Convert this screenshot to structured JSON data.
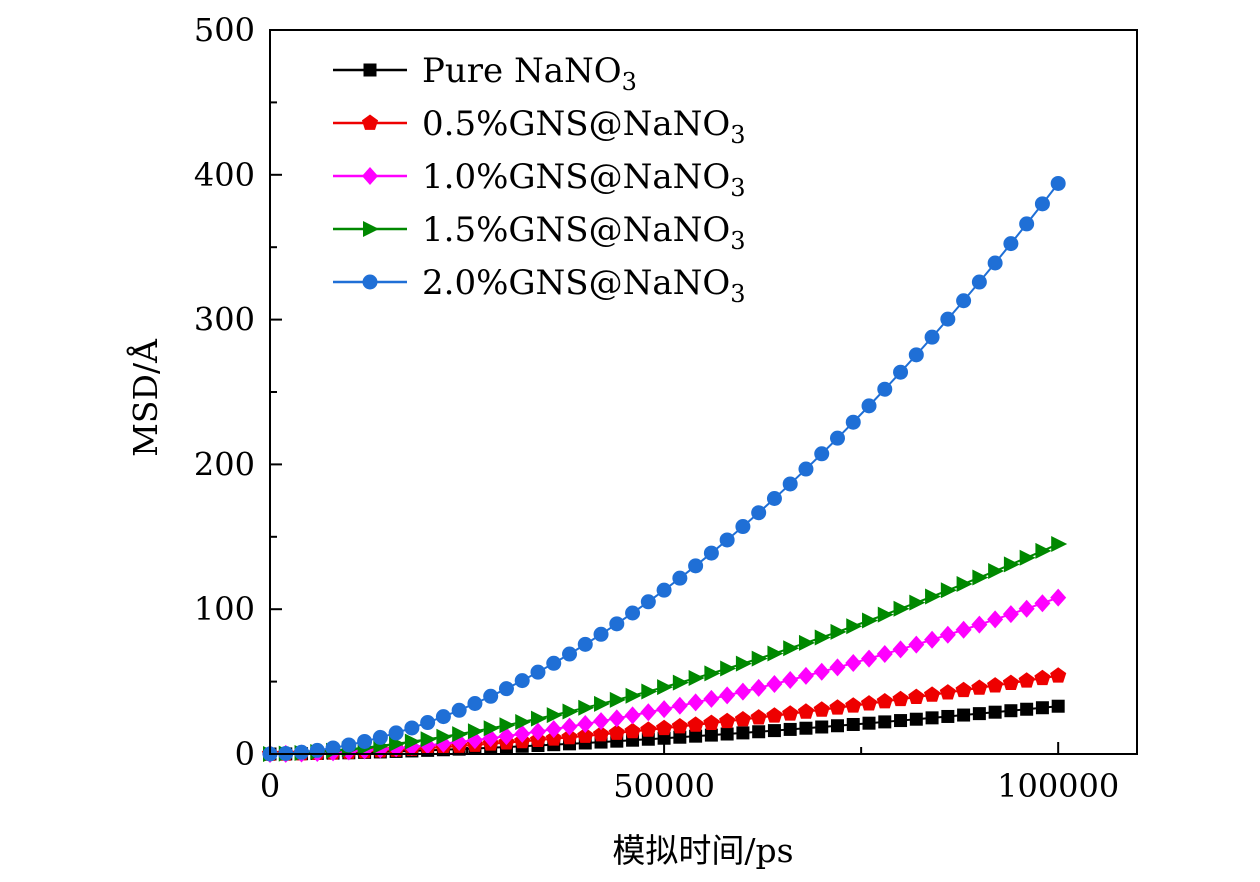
{
  "chart_data": {
    "type": "line",
    "title": "",
    "xlabel": "模拟时间/ps",
    "ylabel": "MSD/Å",
    "xlim": [
      0,
      110000
    ],
    "ylim": [
      0,
      500
    ],
    "xticks": [
      0,
      50000,
      100000
    ],
    "xtick_labels": [
      "0",
      "50000",
      "100000"
    ],
    "yticks": [
      0,
      100,
      200,
      300,
      400,
      500
    ],
    "ytick_labels": [
      "0",
      "100",
      "200",
      "300",
      "400",
      "500"
    ],
    "grid": false,
    "legend_position": "top-left",
    "x_range": [
      0,
      100000
    ],
    "n_points": 51,
    "series": [
      {
        "name": "Pure NaNO3",
        "label_main": "Pure NaNO",
        "label_sub": "3",
        "color": "#000000",
        "marker": "square",
        "final_value": 33,
        "curve_exponent": 1.6
      },
      {
        "name": "0.5%GNS@NaNO3",
        "label_main": "0.5%GNS@NaNO",
        "label_sub": "3",
        "color": "#ee0000",
        "marker": "pentagon",
        "final_value": 54,
        "curve_exponent": 1.6
      },
      {
        "name": "1.0%GNS@NaNO3",
        "label_main": "1.0%GNS@NaNO",
        "label_sub": "3",
        "color": "#ff00ff",
        "marker": "diamond",
        "final_value": 108,
        "curve_exponent": 1.8
      },
      {
        "name": "1.5%GNS@NaNO3",
        "label_main": "1.5%GNS@NaNO",
        "label_sub": "3",
        "color": "#008800",
        "marker": "triangle-right",
        "final_value": 145,
        "curve_exponent": 1.65
      },
      {
        "name": "2.0%GNS@NaNO3",
        "label_main": "2.0%GNS@NaNO",
        "label_sub": "3",
        "color": "#1f6fd6",
        "marker": "circle",
        "final_value": 394,
        "curve_exponent": 1.8
      }
    ]
  }
}
